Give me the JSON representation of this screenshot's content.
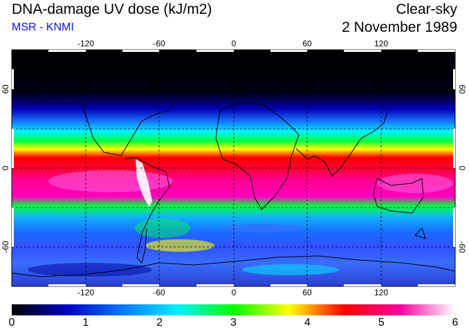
{
  "header": {
    "title": "DNA-damage UV dose (kJ/m2)",
    "subtitle": "MSR - KNMI",
    "condition": "Clear-sky",
    "date": "2 November 1989"
  },
  "map": {
    "projection": "equirectangular",
    "lon_range": [
      -180,
      180
    ],
    "lat_range": [
      -90,
      90
    ],
    "grid_lines": "dashed",
    "lon_ticks": [
      "-120",
      "-60",
      "0",
      "60",
      "120"
    ],
    "lat_ticks_left": [
      "60",
      "0",
      "-60"
    ],
    "lat_ticks_right": [
      "60",
      "0",
      "-60"
    ]
  },
  "colorbar": {
    "min": 0,
    "max": 6,
    "tick_labels": [
      "0",
      "1",
      "2",
      "3",
      "4",
      "5",
      "6"
    ],
    "colors": [
      "#000000",
      "#0000c8",
      "#0a78ff",
      "#00f0ff",
      "#00ff00",
      "#ffff00",
      "#ff0000",
      "#ff00a0",
      "#ffffff"
    ]
  }
}
